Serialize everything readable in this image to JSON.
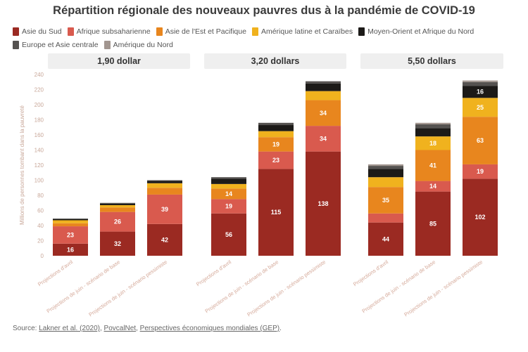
{
  "chart_data": {
    "type": "bar",
    "stacked": true,
    "title": "Répartition régionale des nouveaux pauvres dus à la pandémie de COVID-19",
    "ylabel": "Millions de personnes tombant dans la pauvreté",
    "xlabel": "",
    "ylim": [
      0,
      240
    ],
    "yticks": [
      0,
      20,
      40,
      60,
      80,
      100,
      120,
      140,
      160,
      180,
      200,
      220,
      240
    ],
    "grid": false,
    "legend_position": "top-left",
    "series_names": [
      "Asie du Sud",
      "Afrique subsaharienne",
      "Asie de l'Est et Pacifique",
      "Amérique latine et Caraïbes",
      "Moyen-Orient et Afrique du Nord",
      "Europe et Asie centrale",
      "Amérique du Nord"
    ],
    "series_colors": [
      "#9b2a22",
      "#d95a4e",
      "#e8861e",
      "#f0b21e",
      "#1c1a18",
      "#555250",
      "#a29690"
    ],
    "categories": [
      "Projections d'avril",
      "Projections de juin - scénario de base",
      "Projections de juin - scénario pessimiste"
    ],
    "panels": [
      {
        "label": "1,90 dollar",
        "bars": [
          {
            "category": "Projections d'avril",
            "values": [
              16,
              23,
              4,
              4,
              2,
              0,
              0
            ],
            "labels": [
              "16",
              "23",
              "",
              "",
              "",
              "",
              ""
            ]
          },
          {
            "category": "Projections de juin - scénario de base",
            "values": [
              32,
              26,
              6,
              3,
              2,
              1,
              0
            ],
            "labels": [
              "32",
              "26",
              "",
              "",
              "",
              "",
              ""
            ]
          },
          {
            "category": "Projections de juin - scénario pessimiste",
            "values": [
              42,
              39,
              9,
              6,
              3,
              1,
              0
            ],
            "labels": [
              "42",
              "39",
              "",
              "",
              "",
              "",
              ""
            ]
          }
        ]
      },
      {
        "label": "3,20 dollars",
        "bars": [
          {
            "category": "Projections d'avril",
            "values": [
              56,
              19,
              14,
              6,
              7,
              2,
              0
            ],
            "labels": [
              "56",
              "19",
              "14",
              "",
              "",
              "",
              ""
            ]
          },
          {
            "category": "Projections de juin - scénario de base",
            "values": [
              115,
              23,
              19,
              8,
              8,
              3,
              0
            ],
            "labels": [
              "115",
              "23",
              "19",
              "",
              "",
              "",
              ""
            ]
          },
          {
            "category": "Projections de juin - scénario pessimiste",
            "values": [
              138,
              34,
              34,
              12,
              10,
              3,
              0
            ],
            "labels": [
              "138",
              "34",
              "34",
              "",
              "",
              "",
              ""
            ]
          }
        ]
      },
      {
        "label": "5,50 dollars",
        "bars": [
          {
            "category": "Projections d'avril",
            "values": [
              44,
              12,
              35,
              13,
              11,
              4,
              2
            ],
            "labels": [
              "44",
              "",
              "35",
              "",
              "",
              "",
              ""
            ]
          },
          {
            "category": "Projections de juin - scénario de base",
            "values": [
              85,
              14,
              41,
              18,
              11,
              5,
              2
            ],
            "labels": [
              "85",
              "14",
              "41",
              "18",
              "",
              "",
              ""
            ]
          },
          {
            "category": "Projections de juin - scénario pessimiste",
            "values": [
              102,
              19,
              63,
              25,
              16,
              5,
              2
            ],
            "labels": [
              "102",
              "19",
              "63",
              "25",
              "16",
              "",
              ""
            ]
          }
        ]
      }
    ]
  },
  "source": {
    "prefix": "Source:",
    "links": [
      "Lakner et al. (2020)",
      "PovcalNet",
      "Perspectives économiques mondiales (GEP)"
    ],
    "separator": ", ",
    "suffix": "."
  }
}
